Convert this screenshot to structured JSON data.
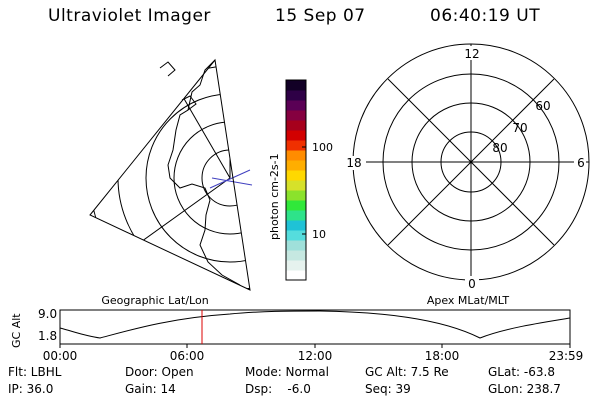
{
  "header": {
    "title": "Ultraviolet Imager",
    "date": "15 Sep 07",
    "time": "06:40:19 UT"
  },
  "left_panel": {
    "label": "Geographic Lat/Lon"
  },
  "right_panel": {
    "label": "Apex MLat/MLT",
    "mlt_labels": [
      "12",
      "18",
      "6",
      "0"
    ],
    "lat_labels": [
      "60",
      "70",
      "80"
    ]
  },
  "colorbar": {
    "label": "photon cm-2s-1",
    "tick_labels": [
      "100",
      "10"
    ],
    "colors": [
      "#ffffff",
      "#e6f2ee",
      "#c6e8e1",
      "#9fe0da",
      "#55dddd",
      "#1fc2d6",
      "#2ee38a",
      "#30e83a",
      "#8be22c",
      "#d6e12a",
      "#ffd800",
      "#ffae00",
      "#ff8c00",
      "#f03000",
      "#d20000",
      "#a6001c",
      "#850040",
      "#5a0055",
      "#2e0046",
      "#120026"
    ]
  },
  "timeline": {
    "ylabel": "GC Alt",
    "ytick_labels": [
      "9.0",
      "1.8"
    ],
    "xtick_labels": [
      "00:00",
      "06:00",
      "12:00",
      "18:00",
      "23:59"
    ],
    "current_time_color": "#dd0000"
  },
  "info": {
    "row1": [
      "Flt: LBHL",
      "Door: Open",
      "Mode: Normal",
      "GC Alt: 7.5 Re",
      "GLat: -63.8"
    ],
    "row2": [
      "IP: 36.0",
      "Gain: 14",
      "Dsp:    -6.0",
      "Seq: 39",
      "GLon: 238.7"
    ]
  }
}
